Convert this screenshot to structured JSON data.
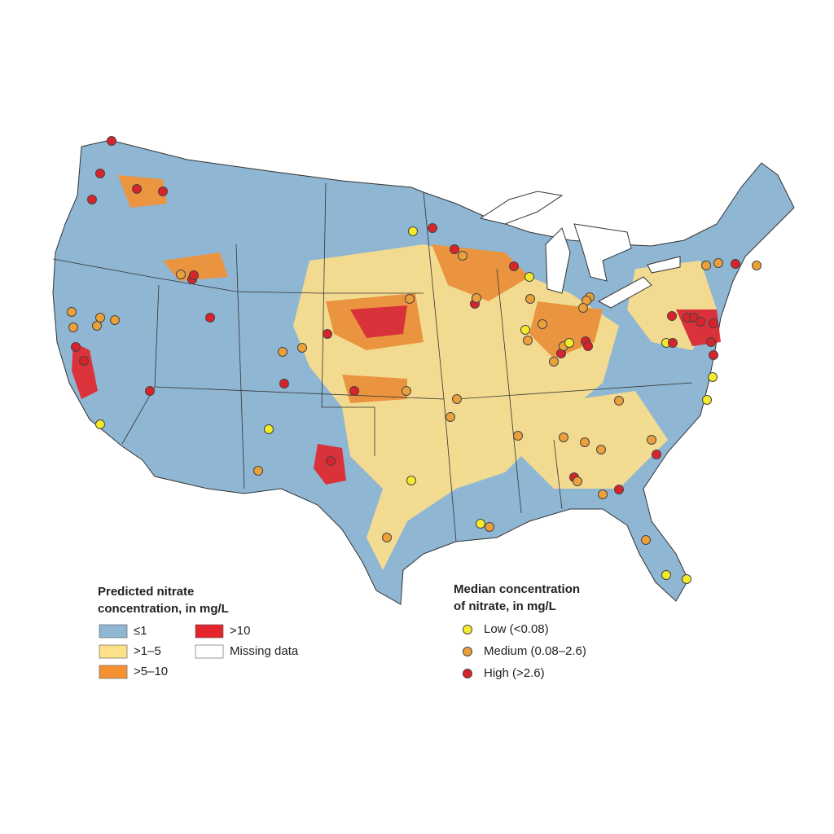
{
  "legend_predicted": {
    "title_lines": [
      "Predicted nitrate",
      "concentration, in mg/L"
    ],
    "items": [
      {
        "label": "≤1",
        "color": "#8fb6d3"
      },
      {
        "label": ">1–5",
        "color": "#fde08a"
      },
      {
        "label": ">5–10",
        "color": "#f59131"
      },
      {
        "label": ">10",
        "color": "#e3242b"
      },
      {
        "label": "Missing data",
        "color": "#ffffff"
      }
    ]
  },
  "legend_median": {
    "title_lines": [
      "Median concentration",
      "of nitrate, in mg/L"
    ],
    "items": [
      {
        "label": "Low (<0.08)",
        "color": "#f4ec2a"
      },
      {
        "label": "Medium (0.08–2.6)",
        "color": "#eca03a"
      },
      {
        "label": "High (>2.6)",
        "color": "#d8232a"
      }
    ]
  }
}
